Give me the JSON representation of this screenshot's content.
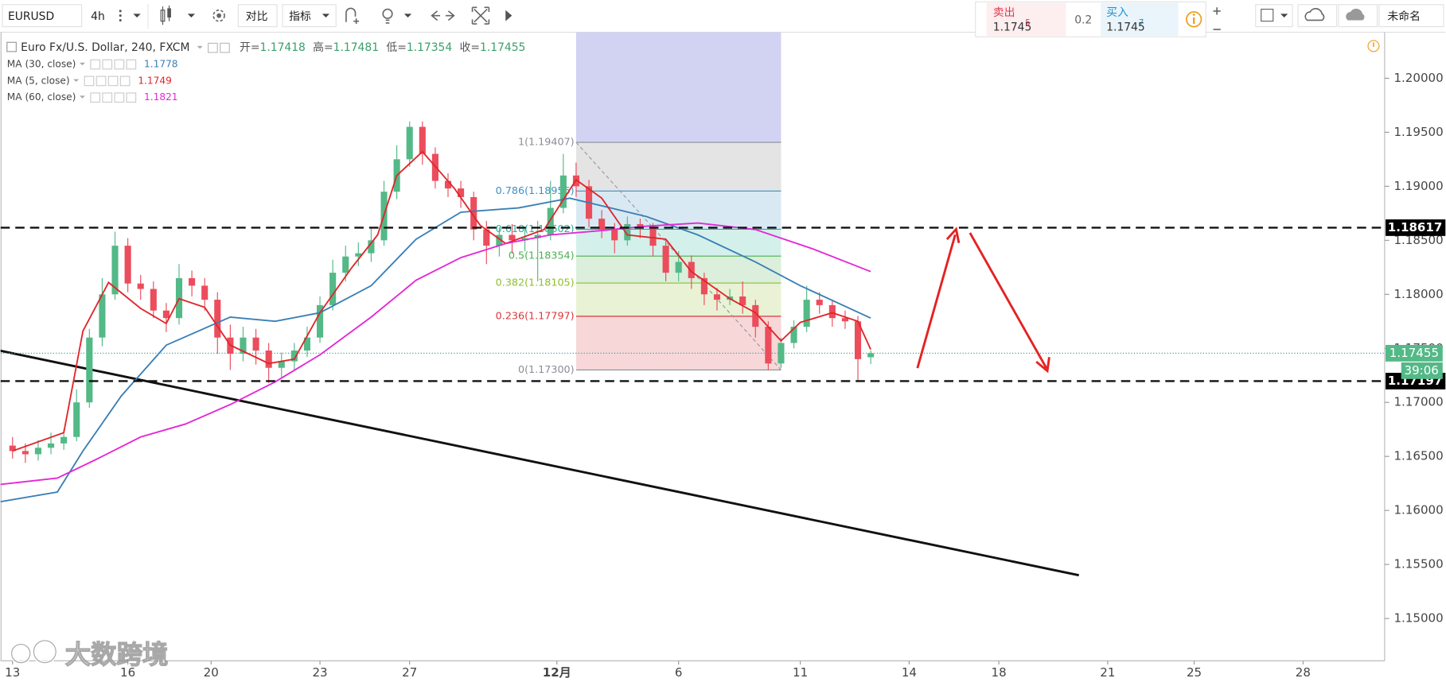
{
  "toolbar": {
    "symbol": "EURUSD",
    "interval": "4h",
    "compare": "对比",
    "indicators": "指标",
    "layout_name": "未命名"
  },
  "quote_panel": {
    "sell": {
      "label": "卖出",
      "price": 1.1745,
      "pip": 5
    },
    "spread": 0.2,
    "buy": {
      "label": "买入",
      "price": 1.1745,
      "pip": 7
    }
  },
  "watermark": "大数跨境",
  "chart_data": {
    "type": "candlestick",
    "title": "Euro Fx/U.S. Dollar, 240, FXCM",
    "ohlc_legend": [
      {
        "name": "开=",
        "value": 1.17418
      },
      {
        "name": "高=",
        "value": 1.17481
      },
      {
        "name": "低=",
        "value": 1.17354
      },
      {
        "name": "收=",
        "value": 1.17455
      }
    ],
    "up_color": "#53b987",
    "down_color": "#eb4d5c",
    "x": [
      0,
      2,
      4,
      6,
      8,
      10,
      12,
      14,
      16,
      18,
      20,
      22,
      24,
      26,
      28,
      30,
      32,
      34,
      36,
      38,
      40,
      42,
      44,
      46,
      48,
      50,
      52,
      54,
      56,
      58,
      60,
      62,
      64,
      66,
      68,
      70,
      72,
      74,
      76,
      78,
      80,
      82,
      84,
      86,
      88,
      90,
      92,
      94,
      96,
      98,
      100,
      102,
      104,
      106,
      108,
      110,
      112,
      114,
      116,
      118,
      120,
      122,
      124,
      126,
      128,
      130,
      132,
      134
    ],
    "open": [
      1.166,
      1.1655,
      1.1652,
      1.1658,
      1.1662,
      1.1668,
      1.17,
      1.176,
      1.18,
      1.1845,
      1.181,
      1.1805,
      1.1785,
      1.1778,
      1.1815,
      1.1808,
      1.1795,
      1.176,
      1.1745,
      1.176,
      1.1748,
      1.1732,
      1.1738,
      1.1748,
      1.176,
      1.179,
      1.182,
      1.1835,
      1.1838,
      1.185,
      1.1895,
      1.1925,
      1.1955,
      1.193,
      1.1905,
      1.1898,
      1.189,
      1.186,
      1.1845,
      1.1855,
      1.185,
      1.1852,
      1.1855,
      1.188,
      1.191,
      1.19,
      1.187,
      1.186,
      1.185,
      1.1865,
      1.1862,
      1.1845,
      1.182,
      1.183,
      1.1815,
      1.18,
      1.1795,
      1.1798,
      1.179,
      1.177,
      1.1736,
      1.1755,
      1.177,
      1.1795,
      1.179,
      1.1778,
      1.1775,
      1.17418
    ],
    "high": [
      1.1668,
      1.1662,
      1.1665,
      1.1672,
      1.1675,
      1.1712,
      1.1768,
      1.1815,
      1.1858,
      1.1852,
      1.1818,
      1.1812,
      1.1792,
      1.1828,
      1.1822,
      1.1815,
      1.1802,
      1.1772,
      1.177,
      1.1768,
      1.1755,
      1.1746,
      1.1755,
      1.177,
      1.1798,
      1.1832,
      1.1845,
      1.1848,
      1.1862,
      1.1905,
      1.1938,
      1.196,
      1.196,
      1.1936,
      1.1912,
      1.1905,
      1.1895,
      1.1868,
      1.1862,
      1.1865,
      1.1862,
      1.1868,
      1.1905,
      1.193,
      1.1922,
      1.1906,
      1.1878,
      1.1866,
      1.1872,
      1.187,
      1.1866,
      1.185,
      1.184,
      1.1836,
      1.182,
      1.1806,
      1.1805,
      1.1812,
      1.1795,
      1.1775,
      1.176,
      1.1776,
      1.1808,
      1.1802,
      1.1795,
      1.1785,
      1.178,
      1.17481
    ],
    "low": [
      1.1648,
      1.1644,
      1.1646,
      1.1652,
      1.1656,
      1.1664,
      1.1695,
      1.1752,
      1.1795,
      1.1802,
      1.1795,
      1.1778,
      1.1765,
      1.1772,
      1.1798,
      1.1785,
      1.1745,
      1.173,
      1.1738,
      1.1735,
      1.1718,
      1.1722,
      1.173,
      1.1742,
      1.1755,
      1.1785,
      1.1812,
      1.1826,
      1.183,
      1.1845,
      1.1888,
      1.1918,
      1.192,
      1.1898,
      1.189,
      1.188,
      1.185,
      1.1828,
      1.1835,
      1.1838,
      1.184,
      1.1812,
      1.185,
      1.1875,
      1.189,
      1.1862,
      1.1852,
      1.1838,
      1.1845,
      1.1852,
      1.1835,
      1.1812,
      1.1812,
      1.1805,
      1.179,
      1.1785,
      1.179,
      1.1782,
      1.176,
      1.173,
      1.1732,
      1.175,
      1.1765,
      1.1782,
      1.177,
      1.1768,
      1.172,
      1.17354
    ],
    "close": [
      1.1655,
      1.1652,
      1.1658,
      1.1662,
      1.1668,
      1.17,
      1.176,
      1.18,
      1.1845,
      1.181,
      1.1805,
      1.1785,
      1.1778,
      1.1815,
      1.1808,
      1.1795,
      1.176,
      1.1745,
      1.176,
      1.1748,
      1.1732,
      1.1738,
      1.1748,
      1.176,
      1.179,
      1.182,
      1.1835,
      1.1838,
      1.185,
      1.1895,
      1.1925,
      1.1955,
      1.193,
      1.1905,
      1.1898,
      1.189,
      1.186,
      1.1845,
      1.1855,
      1.185,
      1.1852,
      1.1855,
      1.188,
      1.191,
      1.19,
      1.187,
      1.186,
      1.185,
      1.1865,
      1.1862,
      1.1845,
      1.182,
      1.183,
      1.1815,
      1.18,
      1.1795,
      1.1798,
      1.179,
      1.177,
      1.1736,
      1.1755,
      1.177,
      1.1795,
      1.179,
      1.1778,
      1.1775,
      1.174,
      1.17455
    ],
    "series": [
      {
        "name": "MA (30, close)",
        "color": "#3a7fb5",
        "last": 1.1778,
        "x": [
          -2,
          7,
          11,
          17,
          24,
          34,
          41,
          48,
          56,
          63,
          70,
          79,
          87,
          99,
          107,
          116,
          123,
          134
        ],
        "values": [
          1.1608,
          1.1617,
          1.1655,
          1.1706,
          1.1753,
          1.1779,
          1.1775,
          1.1783,
          1.1808,
          1.1851,
          1.1876,
          1.188,
          1.1889,
          1.1872,
          1.1855,
          1.183,
          1.1808,
          1.1778
        ]
      },
      {
        "name": "MA (5, close)",
        "color": "#e0262a",
        "last": 1.1749,
        "x": [
          0,
          8,
          11,
          15,
          20,
          24,
          26,
          30,
          34,
          40,
          44,
          48,
          53,
          57,
          60,
          64,
          69,
          73,
          77,
          83,
          88,
          92,
          96,
          102,
          106,
          112,
          116,
          120,
          123,
          128,
          132,
          134
        ],
        "values": [
          1.1655,
          1.1672,
          1.1766,
          1.1811,
          1.1787,
          1.1773,
          1.1796,
          1.1788,
          1.1753,
          1.1736,
          1.174,
          1.1783,
          1.1825,
          1.1855,
          1.191,
          1.1932,
          1.1898,
          1.1864,
          1.1847,
          1.186,
          1.1906,
          1.1889,
          1.1855,
          1.1851,
          1.1821,
          1.1796,
          1.1783,
          1.1757,
          1.1774,
          1.1783,
          1.1775,
          1.1749
        ]
      },
      {
        "name": "MA (60, close)",
        "color": "#e427d6",
        "last": 1.1821,
        "x": [
          -2,
          7,
          13,
          20,
          27,
          34,
          41,
          48,
          56,
          63,
          70,
          77,
          84,
          92,
          99,
          107,
          116,
          125,
          134
        ],
        "values": [
          1.1624,
          1.163,
          1.1647,
          1.1668,
          1.168,
          1.1698,
          1.1719,
          1.1744,
          1.1779,
          1.1813,
          1.1834,
          1.1847,
          1.1855,
          1.1859,
          1.1863,
          1.1866,
          1.186,
          1.1842,
          1.1821
        ]
      }
    ],
    "xlim": [
      -1.87,
      214.24
    ],
    "xticks": [
      {
        "value": 0,
        "label": "13"
      },
      {
        "value": 18,
        "label": "16"
      },
      {
        "value": 31,
        "label": "20"
      },
      {
        "value": 48,
        "label": "23"
      },
      {
        "value": 62,
        "label": "27"
      },
      {
        "value": 85,
        "label": "12月"
      },
      {
        "value": 104,
        "label": "6"
      },
      {
        "value": 123,
        "label": "11"
      },
      {
        "value": 140,
        "label": "14"
      },
      {
        "value": 154,
        "label": "18"
      },
      {
        "value": 171,
        "label": "21"
      },
      {
        "value": 184.5,
        "label": "25"
      },
      {
        "value": 201.5,
        "label": "28"
      }
    ],
    "ylim": [
      1.14608,
      1.20426
    ],
    "yticks": [
      {
        "value": 1.15,
        "label": "1.15000"
      },
      {
        "value": 1.155,
        "label": "1.15500"
      },
      {
        "value": 1.16,
        "label": "1.16000"
      },
      {
        "value": 1.165,
        "label": "1.16500"
      },
      {
        "value": 1.17,
        "label": "1.17000"
      },
      {
        "value": 1.175,
        "label": "1.17500"
      },
      {
        "value": 1.18,
        "label": "1.18000"
      },
      {
        "value": 1.185,
        "label": "1.18500"
      },
      {
        "value": 1.19,
        "label": "1.19000"
      },
      {
        "value": 1.195,
        "label": "1.19500"
      },
      {
        "value": 1.2,
        "label": "1.20000"
      }
    ],
    "hlines": [
      1.18617,
      1.17197
    ],
    "last_price": 1.17455,
    "countdown": "39:06",
    "trendline": {
      "x": [
        -2,
        166.5
      ],
      "values": [
        1.17479,
        1.154
      ]
    },
    "fib": {
      "x": [
        88,
        120
      ],
      "extension_color": "#d2d2f3",
      "levels": [
        {
          "value": 1.19407,
          "label": "1(1.19407)",
          "color": "#8a8d96"
        },
        {
          "value": 1.18956,
          "label": "0.786(1.18956)",
          "color": "#3d8fc6"
        },
        {
          "value": 1.18602,
          "label": "0.618(1.18602)",
          "color": "#26b39a"
        },
        {
          "value": 1.18354,
          "label": "0.5(1.18354)",
          "color": "#4caf50"
        },
        {
          "value": 1.18105,
          "label": "0.382(1.18105)",
          "color": "#8fbf2f"
        },
        {
          "value": 1.17797,
          "label": "0.236(1.17797)",
          "color": "#d8383c"
        },
        {
          "value": 1.173,
          "label": "0(1.17300)",
          "color": "#8a8d96"
        }
      ]
    }
  }
}
